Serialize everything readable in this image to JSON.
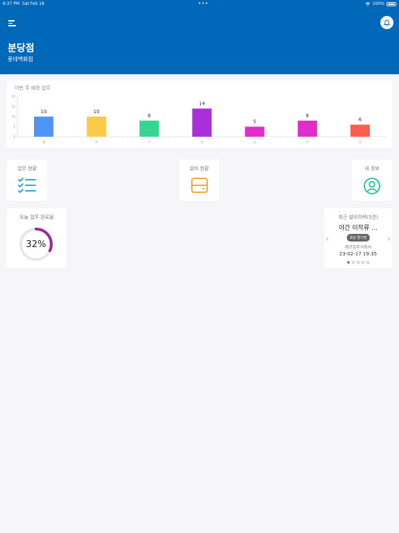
{
  "status_bar": {
    "time": "6:37 PM",
    "date": "Sat Feb 18",
    "dots": "•••",
    "battery": "100%"
  },
  "header": {
    "title": "분당점",
    "subtitle": "롯데백화점"
  },
  "chart_card": {
    "title": "이번 주 예정 업무"
  },
  "chart_data": {
    "type": "bar",
    "title": "이번 주 예정 업무",
    "categories": [
      "월",
      "화",
      "수",
      "목",
      "금",
      "토",
      "일"
    ],
    "values": [
      10,
      10,
      8,
      14,
      5,
      8,
      6
    ],
    "colors": [
      "#4f95f5",
      "#fdc94a",
      "#36d690",
      "#a92fd8",
      "#df2ec9",
      "#df2ec9",
      "#ff5e4f"
    ],
    "ylim": [
      0,
      20
    ],
    "yticks": [
      0,
      5,
      10,
      15,
      20
    ],
    "grid": false
  },
  "tiles": {
    "work_status": {
      "label": "업무 현황",
      "icon": "checklist-icon"
    },
    "facility_status": {
      "label": "설비 현황",
      "icon": "storage-icon"
    },
    "my_info": {
      "label": "내 정보",
      "icon": "user-circle-icon"
    }
  },
  "completion": {
    "label": "오늘 업무 완료율",
    "percent_text": "32%",
    "value": 32,
    "color": "#9a2b9e"
  },
  "recent_facility": {
    "label": "최근 설비이력(5건)",
    "item_title": "야간 이작류 …",
    "badge": "육상 탈기장",
    "company": "제코업주식회사",
    "date": "23-02-17 19:35",
    "page_count": 5,
    "active_page": 1
  }
}
